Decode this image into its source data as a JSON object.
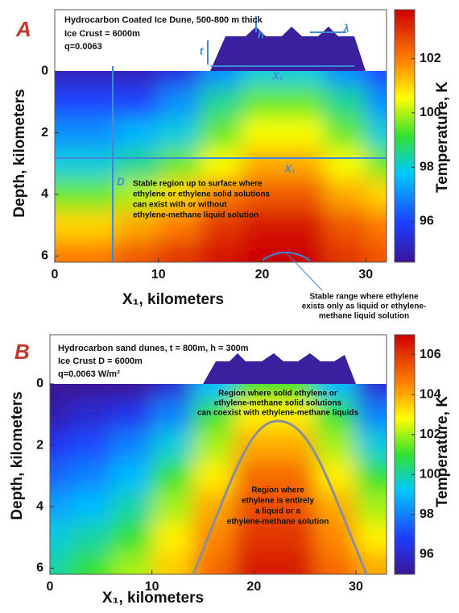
{
  "chart_data": [
    {
      "type": "heatmap",
      "panel": "A",
      "notes": [
        "Hydrocarbon Coated Ice Dune,  500-800 m thick",
        "Ice Crust = 6000m",
        "q=0.0063"
      ],
      "labels": [
        "h",
        "t",
        "λ",
        "X₂",
        "X₁",
        "D"
      ],
      "regions": [
        [
          "Stable region up to surface where",
          "ethylene or ethylene solid solutions",
          "can exist with or without",
          "ethylene-methane liquid solution"
        ],
        [
          "Stable range where ethylene",
          "exists only as liquid or ethylene-",
          "methane liquid solution"
        ]
      ],
      "xlabel": "X₁, kilometers",
      "ylabel": "Depth, kilometers",
      "x": [
        0,
        4,
        8,
        12,
        16,
        20,
        24,
        28,
        32
      ],
      "y": [
        0,
        1,
        2,
        3,
        4,
        5,
        6
      ],
      "z": [
        [
          95,
          95,
          95,
          95.5,
          97,
          98,
          98,
          97,
          96
        ],
        [
          96,
          96,
          96,
          97,
          98.5,
          99.5,
          99.5,
          98.5,
          97
        ],
        [
          97,
          97,
          97.5,
          98,
          99.5,
          100.5,
          100.5,
          99.5,
          98
        ],
        [
          98,
          98,
          98.5,
          99.5,
          100.5,
          101.5,
          101.5,
          100.5,
          99.5
        ],
        [
          99.5,
          99.5,
          100,
          101,
          102,
          102.5,
          102.5,
          101.5,
          101
        ],
        [
          101,
          101,
          101.5,
          102,
          103,
          103.5,
          103.5,
          102.5,
          102
        ],
        [
          102,
          102,
          102.5,
          103,
          103.5,
          104,
          104,
          103,
          102.5
        ]
      ],
      "xlim": [
        0,
        32
      ],
      "ylim": [
        6.2,
        -2.0
      ],
      "xticks": [
        0,
        10,
        20,
        30
      ],
      "yticks": [
        0,
        2,
        4,
        6
      ],
      "colorbar": {
        "label": "Temperature, K",
        "lim": [
          94.5,
          103.8
        ],
        "ticks": [
          96,
          98,
          100,
          102
        ]
      }
    },
    {
      "type": "heatmap",
      "panel": "B",
      "notes": [
        "Hydrocarbon sand dunes, t = 800m, h = 300m",
        "Ice Crust D = 6000m",
        "q=0.0063 W/m²"
      ],
      "labels": [],
      "regions": [
        [
          "Region where solid ethylene or",
          "ethylene-methane solid solutions",
          "can coexist with ethylene-methane liquids"
        ],
        [
          "Region where",
          "ethylene is entirely",
          "a liquid or a",
          "ethylene-methane solution"
        ]
      ],
      "xlabel": "X₁, kilometers",
      "ylabel": "Depth, kilometers",
      "x": [
        0,
        4,
        8,
        12,
        16,
        20,
        24,
        28,
        32
      ],
      "y": [
        0,
        1,
        2,
        3,
        4,
        5,
        6
      ],
      "z": [
        [
          95,
          95,
          95,
          96,
          99,
          101,
          101,
          99,
          96
        ],
        [
          95.5,
          96,
          96.5,
          98,
          101,
          103,
          103,
          101,
          98
        ],
        [
          96.5,
          97,
          98,
          99.5,
          102,
          104,
          104,
          102,
          99.5
        ],
        [
          97.5,
          98,
          99,
          101,
          103,
          105,
          105,
          103,
          101
        ],
        [
          98.5,
          99,
          100,
          102,
          104,
          105.5,
          105.5,
          104,
          102
        ],
        [
          99.5,
          100,
          101,
          103,
          104.5,
          106,
          106,
          104.5,
          103
        ],
        [
          100,
          101,
          102,
          103.5,
          105,
          106.5,
          106.5,
          105,
          104
        ]
      ],
      "xlim": [
        0,
        33
      ],
      "ylim": [
        6.2,
        -1.6
      ],
      "xticks": [
        0,
        10,
        20,
        30
      ],
      "yticks": [
        0,
        2,
        4,
        6
      ],
      "colorbar": {
        "label": "Temperature, K",
        "lim": [
          95,
          107
        ],
        "ticks": [
          96,
          98,
          100,
          102,
          104,
          106
        ]
      }
    }
  ]
}
